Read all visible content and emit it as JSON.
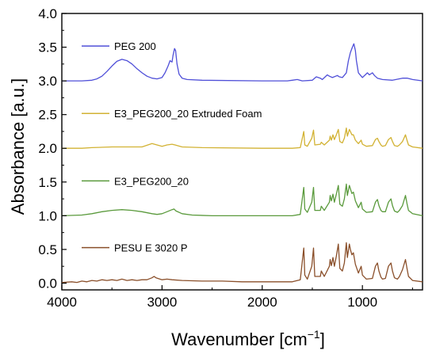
{
  "chart_data": {
    "type": "line",
    "title": "",
    "xlabel": "Wavenumber [cm",
    "xlabel_sup": "−1",
    "xlabel_suffix": "]",
    "ylabel": "Absorbance [a.u.]",
    "xlim": [
      4000,
      400
    ],
    "x_reversed": true,
    "ylim": [
      -0.1,
      4.0
    ],
    "x_ticks": [
      4000,
      3000,
      2000,
      1000
    ],
    "x_tick_labels": [
      "4000",
      "3000",
      "2000",
      "1000"
    ],
    "y_ticks": [
      0.0,
      0.5,
      1.0,
      1.5,
      2.0,
      2.5,
      3.0,
      3.5,
      4.0
    ],
    "y_tick_labels": [
      "0.0",
      "0.5",
      "1.0",
      "1.5",
      "2.0",
      "2.5",
      "3.0",
      "3.5",
      "4.0"
    ],
    "grid": false,
    "legend_placement": "inline-above-each-curve",
    "series": [
      {
        "name": "PEG 200",
        "color": "#4f4fd8",
        "points": [
          [
            4000,
            3.0
          ],
          [
            3800,
            3.0
          ],
          [
            3700,
            3.01
          ],
          [
            3650,
            3.03
          ],
          [
            3600,
            3.07
          ],
          [
            3550,
            3.14
          ],
          [
            3500,
            3.22
          ],
          [
            3450,
            3.29
          ],
          [
            3400,
            3.32
          ],
          [
            3350,
            3.3
          ],
          [
            3300,
            3.25
          ],
          [
            3250,
            3.18
          ],
          [
            3200,
            3.12
          ],
          [
            3150,
            3.07
          ],
          [
            3100,
            3.04
          ],
          [
            3050,
            3.03
          ],
          [
            3000,
            3.05
          ],
          [
            2970,
            3.12
          ],
          [
            2940,
            3.22
          ],
          [
            2920,
            3.3
          ],
          [
            2900,
            3.28
          ],
          [
            2890,
            3.38
          ],
          [
            2875,
            3.48
          ],
          [
            2865,
            3.45
          ],
          [
            2850,
            3.25
          ],
          [
            2830,
            3.1
          ],
          [
            2800,
            3.04
          ],
          [
            2750,
            3.02
          ],
          [
            2600,
            3.01
          ],
          [
            2000,
            3.0
          ],
          [
            1750,
            3.0
          ],
          [
            1700,
            3.01
          ],
          [
            1650,
            3.02
          ],
          [
            1600,
            3.0
          ],
          [
            1500,
            3.01
          ],
          [
            1460,
            3.06
          ],
          [
            1420,
            3.04
          ],
          [
            1400,
            3.02
          ],
          [
            1350,
            3.09
          ],
          [
            1330,
            3.07
          ],
          [
            1300,
            3.05
          ],
          [
            1250,
            3.08
          ],
          [
            1230,
            3.06
          ],
          [
            1200,
            3.05
          ],
          [
            1160,
            3.12
          ],
          [
            1140,
            3.3
          ],
          [
            1120,
            3.42
          ],
          [
            1100,
            3.5
          ],
          [
            1085,
            3.55
          ],
          [
            1070,
            3.45
          ],
          [
            1060,
            3.3
          ],
          [
            1040,
            3.12
          ],
          [
            1000,
            3.05
          ],
          [
            950,
            3.12
          ],
          [
            930,
            3.09
          ],
          [
            900,
            3.12
          ],
          [
            880,
            3.08
          ],
          [
            850,
            3.04
          ],
          [
            800,
            3.02
          ],
          [
            700,
            3.01
          ],
          [
            600,
            3.04
          ],
          [
            550,
            3.04
          ],
          [
            500,
            3.02
          ],
          [
            400,
            3.0
          ]
        ]
      },
      {
        "name": "E3_PEG200_20 Extruded Foam",
        "color": "#d2b233",
        "points": [
          [
            4000,
            2.0
          ],
          [
            3800,
            2.0
          ],
          [
            3700,
            2.01
          ],
          [
            3500,
            2.02
          ],
          [
            3300,
            2.02
          ],
          [
            3200,
            2.02
          ],
          [
            3100,
            2.07
          ],
          [
            3050,
            2.05
          ],
          [
            3000,
            2.03
          ],
          [
            2950,
            2.05
          ],
          [
            2900,
            2.06
          ],
          [
            2870,
            2.05
          ],
          [
            2800,
            2.02
          ],
          [
            2600,
            2.01
          ],
          [
            2000,
            2.0
          ],
          [
            1700,
            2.0
          ],
          [
            1620,
            2.01
          ],
          [
            1585,
            2.25
          ],
          [
            1575,
            2.05
          ],
          [
            1550,
            2.03
          ],
          [
            1505,
            2.15
          ],
          [
            1488,
            2.27
          ],
          [
            1475,
            2.05
          ],
          [
            1420,
            2.06
          ],
          [
            1410,
            2.09
          ],
          [
            1380,
            2.05
          ],
          [
            1330,
            2.12
          ],
          [
            1322,
            2.18
          ],
          [
            1310,
            2.12
          ],
          [
            1294,
            2.2
          ],
          [
            1280,
            2.13
          ],
          [
            1260,
            2.2
          ],
          [
            1240,
            2.28
          ],
          [
            1225,
            2.1
          ],
          [
            1200,
            2.08
          ],
          [
            1180,
            2.15
          ],
          [
            1160,
            2.3
          ],
          [
            1150,
            2.18
          ],
          [
            1130,
            2.28
          ],
          [
            1120,
            2.25
          ],
          [
            1105,
            2.2
          ],
          [
            1090,
            2.2
          ],
          [
            1070,
            2.12
          ],
          [
            1040,
            2.07
          ],
          [
            1012,
            2.12
          ],
          [
            1000,
            2.06
          ],
          [
            960,
            2.03
          ],
          [
            900,
            2.04
          ],
          [
            870,
            2.13
          ],
          [
            850,
            2.15
          ],
          [
            835,
            2.1
          ],
          [
            815,
            2.05
          ],
          [
            800,
            2.03
          ],
          [
            770,
            2.04
          ],
          [
            740,
            2.13
          ],
          [
            715,
            2.16
          ],
          [
            700,
            2.1
          ],
          [
            680,
            2.04
          ],
          [
            650,
            2.03
          ],
          [
            630,
            2.05
          ],
          [
            600,
            2.1
          ],
          [
            570,
            2.2
          ],
          [
            555,
            2.12
          ],
          [
            540,
            2.05
          ],
          [
            500,
            2.02
          ],
          [
            400,
            2.0
          ]
        ]
      },
      {
        "name": "E3_PEG200_20",
        "color": "#5a9a3c",
        "points": [
          [
            4000,
            1.0
          ],
          [
            3800,
            1.01
          ],
          [
            3700,
            1.03
          ],
          [
            3600,
            1.06
          ],
          [
            3500,
            1.08
          ],
          [
            3400,
            1.09
          ],
          [
            3300,
            1.08
          ],
          [
            3200,
            1.06
          ],
          [
            3100,
            1.03
          ],
          [
            3050,
            1.02
          ],
          [
            3000,
            1.03
          ],
          [
            2950,
            1.06
          ],
          [
            2900,
            1.09
          ],
          [
            2880,
            1.1
          ],
          [
            2860,
            1.07
          ],
          [
            2800,
            1.03
          ],
          [
            2700,
            1.01
          ],
          [
            2500,
            1.0
          ],
          [
            2000,
            1.0
          ],
          [
            1700,
            1.0
          ],
          [
            1620,
            1.02
          ],
          [
            1585,
            1.42
          ],
          [
            1575,
            1.1
          ],
          [
            1550,
            1.05
          ],
          [
            1505,
            1.2
          ],
          [
            1488,
            1.42
          ],
          [
            1475,
            1.08
          ],
          [
            1420,
            1.08
          ],
          [
            1410,
            1.14
          ],
          [
            1380,
            1.08
          ],
          [
            1330,
            1.2
          ],
          [
            1322,
            1.3
          ],
          [
            1310,
            1.22
          ],
          [
            1294,
            1.32
          ],
          [
            1280,
            1.2
          ],
          [
            1260,
            1.32
          ],
          [
            1240,
            1.45
          ],
          [
            1225,
            1.17
          ],
          [
            1200,
            1.14
          ],
          [
            1180,
            1.25
          ],
          [
            1160,
            1.47
          ],
          [
            1150,
            1.3
          ],
          [
            1130,
            1.45
          ],
          [
            1120,
            1.4
          ],
          [
            1105,
            1.33
          ],
          [
            1090,
            1.35
          ],
          [
            1070,
            1.22
          ],
          [
            1040,
            1.12
          ],
          [
            1012,
            1.2
          ],
          [
            1000,
            1.1
          ],
          [
            960,
            1.05
          ],
          [
            900,
            1.06
          ],
          [
            870,
            1.2
          ],
          [
            850,
            1.24
          ],
          [
            835,
            1.15
          ],
          [
            815,
            1.08
          ],
          [
            800,
            1.06
          ],
          [
            770,
            1.06
          ],
          [
            740,
            1.2
          ],
          [
            715,
            1.25
          ],
          [
            700,
            1.15
          ],
          [
            680,
            1.07
          ],
          [
            650,
            1.05
          ],
          [
            630,
            1.08
          ],
          [
            600,
            1.15
          ],
          [
            570,
            1.3
          ],
          [
            555,
            1.18
          ],
          [
            540,
            1.08
          ],
          [
            500,
            1.03
          ],
          [
            400,
            1.0
          ]
        ]
      },
      {
        "name": "PESU E 3020 P",
        "color": "#8a4f2a",
        "points": [
          [
            4000,
            0.01
          ],
          [
            3900,
            0.02
          ],
          [
            3850,
            0.01
          ],
          [
            3800,
            0.03
          ],
          [
            3750,
            0.02
          ],
          [
            3700,
            0.04
          ],
          [
            3650,
            0.03
          ],
          [
            3600,
            0.05
          ],
          [
            3550,
            0.04
          ],
          [
            3500,
            0.05
          ],
          [
            3450,
            0.04
          ],
          [
            3400,
            0.06
          ],
          [
            3350,
            0.04
          ],
          [
            3300,
            0.05
          ],
          [
            3250,
            0.04
          ],
          [
            3200,
            0.05
          ],
          [
            3150,
            0.05
          ],
          [
            3100,
            0.08
          ],
          [
            3080,
            0.1
          ],
          [
            3060,
            0.08
          ],
          [
            3000,
            0.05
          ],
          [
            2950,
            0.06
          ],
          [
            2900,
            0.05
          ],
          [
            2800,
            0.04
          ],
          [
            2600,
            0.03
          ],
          [
            2400,
            0.03
          ],
          [
            2200,
            0.02
          ],
          [
            2000,
            0.02
          ],
          [
            1800,
            0.02
          ],
          [
            1700,
            0.02
          ],
          [
            1620,
            0.05
          ],
          [
            1585,
            0.52
          ],
          [
            1575,
            0.12
          ],
          [
            1550,
            0.06
          ],
          [
            1505,
            0.25
          ],
          [
            1488,
            0.52
          ],
          [
            1475,
            0.1
          ],
          [
            1420,
            0.1
          ],
          [
            1410,
            0.18
          ],
          [
            1380,
            0.1
          ],
          [
            1330,
            0.25
          ],
          [
            1322,
            0.35
          ],
          [
            1310,
            0.26
          ],
          [
            1294,
            0.38
          ],
          [
            1280,
            0.25
          ],
          [
            1260,
            0.4
          ],
          [
            1240,
            0.58
          ],
          [
            1225,
            0.22
          ],
          [
            1200,
            0.18
          ],
          [
            1180,
            0.3
          ],
          [
            1160,
            0.6
          ],
          [
            1150,
            0.38
          ],
          [
            1130,
            0.58
          ],
          [
            1120,
            0.5
          ],
          [
            1105,
            0.42
          ],
          [
            1090,
            0.45
          ],
          [
            1070,
            0.28
          ],
          [
            1040,
            0.15
          ],
          [
            1012,
            0.25
          ],
          [
            1000,
            0.12
          ],
          [
            960,
            0.06
          ],
          [
            900,
            0.07
          ],
          [
            870,
            0.25
          ],
          [
            850,
            0.3
          ],
          [
            835,
            0.18
          ],
          [
            815,
            0.09
          ],
          [
            800,
            0.06
          ],
          [
            770,
            0.07
          ],
          [
            740,
            0.25
          ],
          [
            715,
            0.3
          ],
          [
            700,
            0.18
          ],
          [
            680,
            0.08
          ],
          [
            650,
            0.06
          ],
          [
            630,
            0.1
          ],
          [
            600,
            0.2
          ],
          [
            570,
            0.35
          ],
          [
            555,
            0.22
          ],
          [
            540,
            0.1
          ],
          [
            500,
            0.04
          ],
          [
            400,
            0.02
          ]
        ]
      }
    ]
  }
}
